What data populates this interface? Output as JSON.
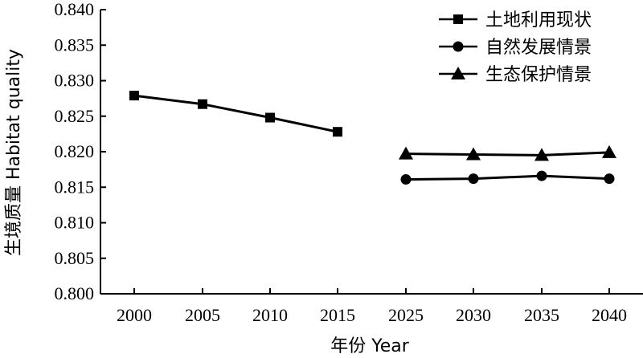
{
  "chart_data": {
    "type": "line",
    "categories": [
      "2000",
      "2005",
      "2010",
      "2015",
      "2025",
      "2030",
      "2035",
      "2040"
    ],
    "xlabel": "年份 Year",
    "ylabel": "生境质量 Habitat quality",
    "ylim": [
      0.8,
      0.84
    ],
    "yticks": [
      "0.800",
      "0.805",
      "0.810",
      "0.815",
      "0.820",
      "0.825",
      "0.830",
      "0.835",
      "0.840"
    ],
    "grid": false,
    "legend_position": "top-right",
    "series": [
      {
        "name": "土地利用现状",
        "marker": "square",
        "values": [
          0.8279,
          0.8267,
          0.8248,
          0.8228,
          null,
          null,
          null,
          null
        ]
      },
      {
        "name": "自然发展情景",
        "marker": "circle",
        "values": [
          null,
          null,
          null,
          null,
          0.8161,
          0.8162,
          0.8166,
          0.8162
        ]
      },
      {
        "name": "生态保护情景",
        "marker": "triangle",
        "values": [
          null,
          null,
          null,
          null,
          0.8197,
          0.8196,
          0.8195,
          0.8199
        ]
      }
    ],
    "colors": {
      "line": "#000000",
      "marker": "#000000"
    }
  }
}
